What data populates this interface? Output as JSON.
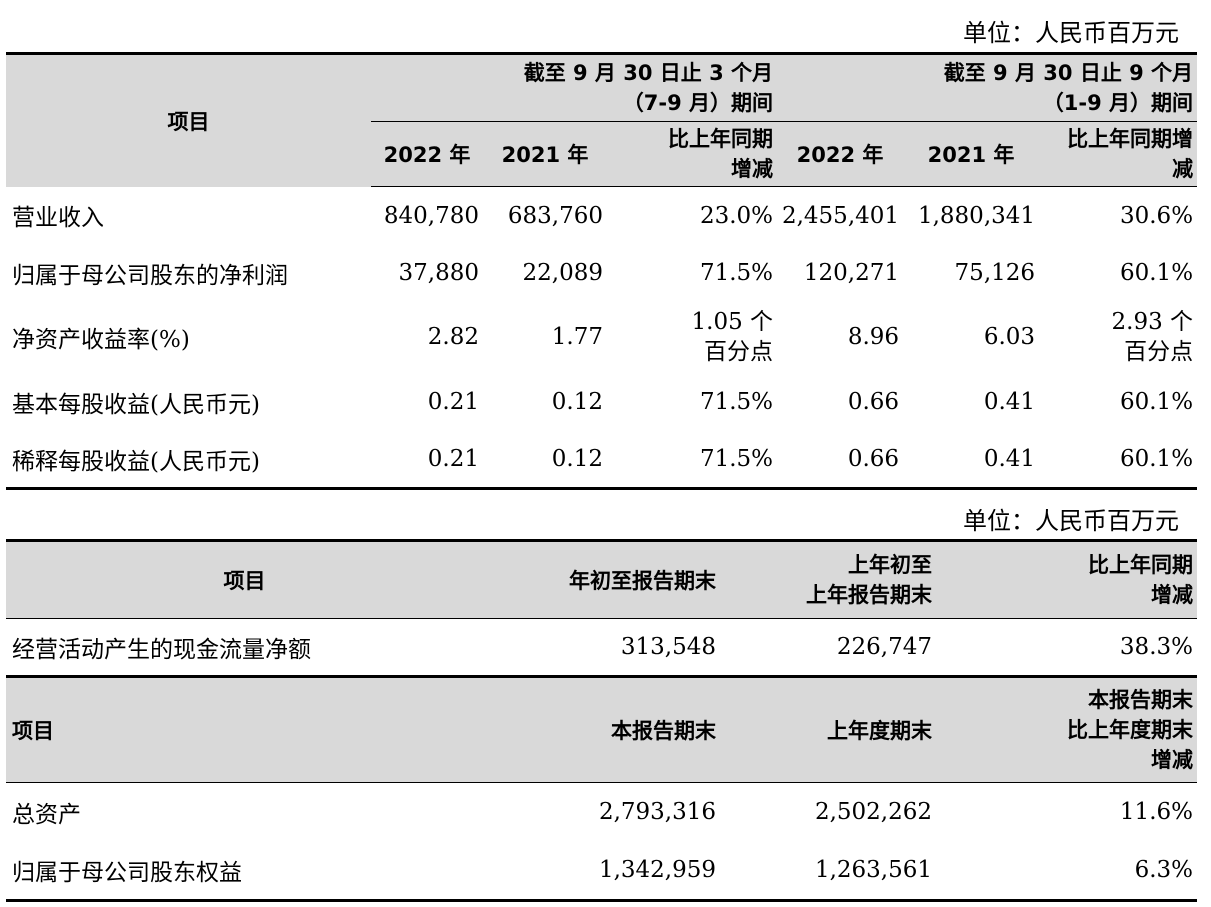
{
  "unit_label": "单位：人民币百万元",
  "table1": {
    "header": {
      "item": "项目",
      "period_q3_line1": "截至 9 月 30 日止 3 个月",
      "period_q3_line2": "（7-9 月）期间",
      "period_9m_line1": "截至 9 月 30 日止 9 个月",
      "period_9m_line2": "（1-9 月）期间",
      "year_2022": "2022 年",
      "year_2021": "2021 年",
      "change_q3_line1": "比上年同期",
      "change_q3_line2": "增减",
      "change_9m_line1": "比上年同期增",
      "change_9m_line2": "减"
    },
    "rows": [
      {
        "label": "营业收入",
        "q3_2022": "840,780",
        "q3_2021": "683,760",
        "q3_change": "23.0%",
        "q3_change2": "",
        "m9_2022": "2,455,401",
        "m9_2021": "1,880,341",
        "m9_change": "30.6%",
        "m9_change2": ""
      },
      {
        "label": "归属于母公司股东的净利润",
        "q3_2022": "37,880",
        "q3_2021": "22,089",
        "q3_change": "71.5%",
        "q3_change2": "",
        "m9_2022": "120,271",
        "m9_2021": "75,126",
        "m9_change": "60.1%",
        "m9_change2": ""
      },
      {
        "label": "净资产收益率(%)",
        "q3_2022": "2.82",
        "q3_2021": "1.77",
        "q3_change": "1.05 个",
        "q3_change2": "百分点",
        "m9_2022": "8.96",
        "m9_2021": "6.03",
        "m9_change": "2.93 个",
        "m9_change2": "百分点"
      },
      {
        "label": "基本每股收益(人民币元)",
        "q3_2022": "0.21",
        "q3_2021": "0.12",
        "q3_change": "71.5%",
        "q3_change2": "",
        "m9_2022": "0.66",
        "m9_2021": "0.41",
        "m9_change": "60.1%",
        "m9_change2": ""
      },
      {
        "label": "稀释每股收益(人民币元)",
        "q3_2022": "0.21",
        "q3_2021": "0.12",
        "q3_change": "71.5%",
        "q3_change2": "",
        "m9_2022": "0.66",
        "m9_2021": "0.41",
        "m9_change": "60.1%",
        "m9_change2": ""
      }
    ]
  },
  "table2": {
    "header": {
      "item": "项目",
      "ytd": "年初至报告期末",
      "prev_ytd_line1": "上年初至",
      "prev_ytd_line2": "上年报告期末",
      "change_line1": "比上年同期",
      "change_line2": "增减"
    },
    "cashflow_row": {
      "label": "经营活动产生的现金流量净额",
      "ytd": "313,548",
      "prev_ytd": "226,747",
      "change": "38.3%"
    },
    "header2": {
      "item": "项目",
      "period_end": "本报告期末",
      "prev_year_end": "上年度期末",
      "change_line1": "本报告期末",
      "change_line2": "比上年度期末",
      "change_line3": "增减"
    },
    "rows": [
      {
        "label": "总资产",
        "period_end": "2,793,316",
        "prev_year_end": "2,502,262",
        "change": "11.6%"
      },
      {
        "label": "归属于母公司股东权益",
        "period_end": "1,342,959",
        "prev_year_end": "1,263,561",
        "change": "6.3%"
      }
    ]
  }
}
